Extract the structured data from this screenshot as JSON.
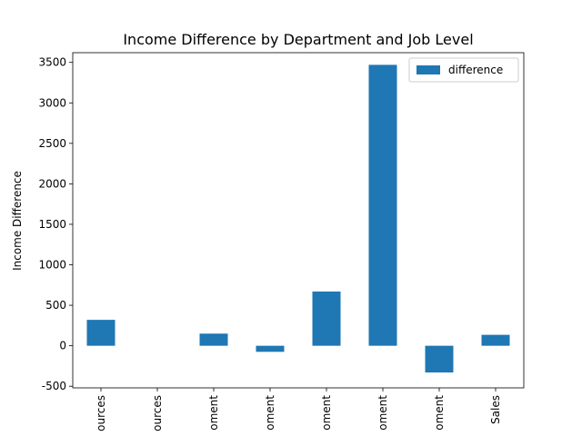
{
  "chart_data": {
    "type": "bar",
    "title": "Income Difference by Department and Job Level",
    "xlabel": "",
    "ylabel": "Income Difference",
    "categories": [
      "ources",
      "ources",
      "oment",
      "oment",
      "oment",
      "oment",
      "oment",
      "Sales"
    ],
    "series": [
      {
        "name": "difference",
        "values": [
          320,
          0,
          150,
          -75,
          670,
          3470,
          -330,
          135
        ]
      }
    ],
    "ylim": [
      -520,
      3620
    ],
    "yticks": [
      -500,
      0,
      500,
      1000,
      1500,
      2000,
      2500,
      3000,
      3500
    ],
    "legend_position": "top-right",
    "grid": false,
    "colors": {
      "bar": "#1f77b4"
    }
  }
}
